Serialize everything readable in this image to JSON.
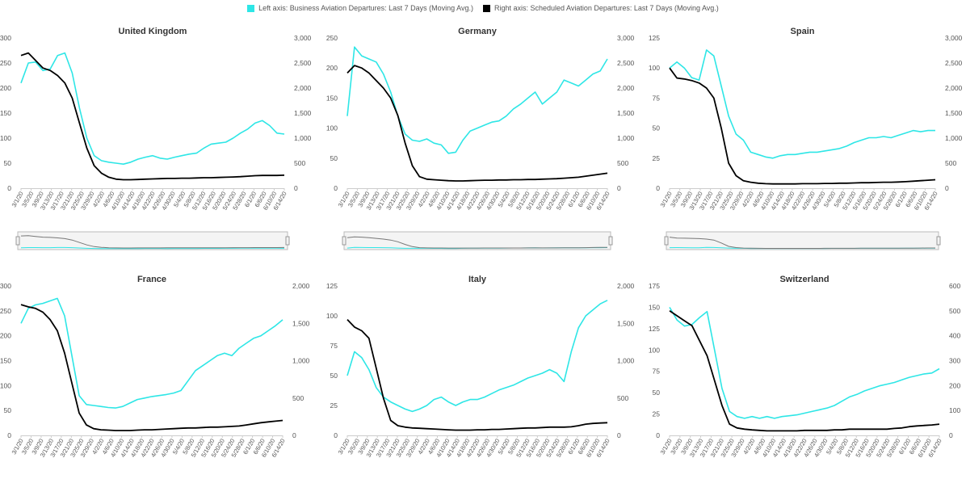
{
  "legend": {
    "left_label": "Left axis: Business Aviation Departures: Last 7 Days (Moving Avg.)",
    "right_label": "Right axis: Scheduled Aviation Departures: Last 7 Days (Moving Avg.)",
    "left_color": "#2ee6e6",
    "right_color": "#000000"
  },
  "chart_data": [
    {
      "type": "line",
      "title": "United Kingdom",
      "x_ticks": [
        "3/1/20",
        "3/5/20",
        "3/9/20",
        "3/13/20",
        "3/17/20",
        "3/21/20",
        "3/25/20",
        "3/29/20",
        "4/2/20",
        "4/6/20",
        "4/10/20",
        "4/14/20",
        "4/18/20",
        "4/22/20",
        "4/26/20",
        "4/30/20",
        "5/4/20",
        "5/8/20",
        "5/12/20",
        "5/16/20",
        "5/20/20",
        "5/24/20",
        "5/28/20",
        "6/1/20",
        "6/6/20",
        "6/10/20",
        "6/14/20"
      ],
      "left_axis": {
        "ylim": [
          0,
          300
        ],
        "ticks": [
          "0",
          "50",
          "100",
          "150",
          "200",
          "250",
          "300"
        ]
      },
      "right_axis": {
        "ylim": [
          0,
          3000
        ],
        "ticks": [
          "0",
          "500",
          "1,000",
          "1,500",
          "2,000",
          "2,500",
          "3,000"
        ]
      },
      "has_navigator": true,
      "series": [
        {
          "axis": "left",
          "color": "#2ee6e6",
          "values": [
            210,
            250,
            252,
            235,
            238,
            265,
            270,
            230,
            160,
            100,
            65,
            55,
            52,
            50,
            48,
            52,
            58,
            62,
            65,
            60,
            58,
            62,
            65,
            68,
            70,
            80,
            88,
            90,
            92,
            100,
            110,
            118,
            130,
            135,
            125,
            110,
            108
          ]
        },
        {
          "axis": "right",
          "color": "#000000",
          "values": [
            2650,
            2700,
            2550,
            2400,
            2350,
            2250,
            2100,
            1800,
            1300,
            800,
            450,
            300,
            220,
            180,
            170,
            170,
            175,
            180,
            185,
            190,
            195,
            195,
            200,
            200,
            205,
            210,
            210,
            215,
            220,
            225,
            230,
            240,
            250,
            255,
            255,
            255,
            260
          ]
        }
      ]
    },
    {
      "type": "line",
      "title": "Germany",
      "x_ticks": [
        "3/1/20",
        "3/5/20",
        "3/9/20",
        "3/13/20",
        "3/17/20",
        "3/21/20",
        "3/25/20",
        "3/29/20",
        "4/2/20",
        "4/6/20",
        "4/10/20",
        "4/14/20",
        "4/18/20",
        "4/22/20",
        "4/26/20",
        "4/30/20",
        "5/4/20",
        "5/8/20",
        "5/12/20",
        "5/16/20",
        "5/20/20",
        "5/24/20",
        "5/28/20",
        "6/1/20",
        "6/6/20",
        "6/10/20",
        "6/14/20"
      ],
      "left_axis": {
        "ylim": [
          0,
          250
        ],
        "ticks": [
          "0",
          "50",
          "100",
          "150",
          "200",
          "250"
        ]
      },
      "right_axis": {
        "ylim": [
          0,
          3000
        ],
        "ticks": [
          "0",
          "500",
          "1,000",
          "1,500",
          "2,000",
          "2,500",
          "3,000"
        ]
      },
      "has_navigator": true,
      "series": [
        {
          "axis": "left",
          "color": "#2ee6e6",
          "values": [
            120,
            235,
            220,
            215,
            210,
            190,
            160,
            120,
            90,
            80,
            78,
            82,
            75,
            72,
            58,
            60,
            80,
            95,
            100,
            105,
            110,
            112,
            120,
            132,
            140,
            150,
            160,
            140,
            150,
            160,
            180,
            175,
            170,
            180,
            190,
            195,
            215
          ]
        },
        {
          "axis": "right",
          "color": "#000000",
          "values": [
            2300,
            2450,
            2400,
            2300,
            2150,
            2000,
            1800,
            1450,
            900,
            450,
            230,
            180,
            170,
            160,
            150,
            145,
            145,
            150,
            155,
            160,
            160,
            165,
            165,
            170,
            170,
            175,
            175,
            180,
            185,
            190,
            200,
            210,
            220,
            240,
            260,
            280,
            300
          ]
        }
      ]
    },
    {
      "type": "line",
      "title": "Spain",
      "x_ticks": [
        "3/1/20",
        "3/5/20",
        "3/9/20",
        "3/13/20",
        "3/17/20",
        "3/21/20",
        "3/25/20",
        "3/29/20",
        "4/2/20",
        "4/6/20",
        "4/10/20",
        "4/14/20",
        "4/18/20",
        "4/22/20",
        "4/26/20",
        "4/30/20",
        "5/4/20",
        "5/8/20",
        "5/12/20",
        "5/16/20",
        "5/20/20",
        "5/24/20",
        "5/28/20",
        "6/1/20",
        "6/6/20",
        "6/10/20",
        "6/14/20"
      ],
      "left_axis": {
        "ylim": [
          0,
          125
        ],
        "ticks": [
          "0",
          "25",
          "50",
          "75",
          "100",
          "125"
        ]
      },
      "right_axis": {
        "ylim": [
          0,
          3000
        ],
        "ticks": [
          "0",
          "500",
          "1,000",
          "1,500",
          "2,000",
          "2,500",
          "3,000"
        ]
      },
      "has_navigator": true,
      "series": [
        {
          "axis": "left",
          "color": "#2ee6e6",
          "values": [
            100,
            105,
            100,
            92,
            90,
            115,
            110,
            85,
            60,
            45,
            40,
            30,
            28,
            26,
            25,
            27,
            28,
            28,
            29,
            30,
            30,
            31,
            32,
            33,
            35,
            38,
            40,
            42,
            42,
            43,
            42,
            44,
            46,
            48,
            47,
            48,
            48
          ]
        },
        {
          "axis": "right",
          "color": "#000000",
          "values": [
            2400,
            2200,
            2180,
            2150,
            2100,
            2000,
            1800,
            1200,
            500,
            250,
            150,
            120,
            100,
            90,
            85,
            85,
            85,
            85,
            90,
            90,
            90,
            95,
            95,
            100,
            100,
            105,
            110,
            110,
            115,
            120,
            120,
            125,
            130,
            140,
            150,
            160,
            170
          ]
        }
      ]
    },
    {
      "type": "line",
      "title": "France",
      "x_ticks": [
        "3/1/20",
        "3/5/20",
        "3/9/20",
        "3/13/20",
        "3/17/20",
        "3/21/20",
        "3/25/20",
        "3/29/20",
        "4/2/20",
        "4/6/20",
        "4/10/20",
        "4/14/20",
        "4/18/20",
        "4/22/20",
        "4/26/20",
        "4/30/20",
        "5/4/20",
        "5/8/20",
        "5/12/20",
        "5/16/20",
        "5/20/20",
        "5/24/20",
        "5/28/20",
        "6/1/20",
        "6/6/20",
        "6/10/20",
        "6/14/20"
      ],
      "left_axis": {
        "ylim": [
          0,
          300
        ],
        "ticks": [
          "0",
          "50",
          "100",
          "150",
          "200",
          "250",
          "300"
        ]
      },
      "right_axis": {
        "ylim": [
          0,
          2000
        ],
        "ticks": [
          "0",
          "500",
          "1,000",
          "1,500",
          "2,000"
        ]
      },
      "has_navigator": false,
      "series": [
        {
          "axis": "left",
          "color": "#2ee6e6",
          "values": [
            225,
            255,
            262,
            265,
            270,
            275,
            240,
            160,
            80,
            62,
            60,
            58,
            56,
            55,
            58,
            65,
            72,
            75,
            78,
            80,
            82,
            85,
            90,
            110,
            130,
            140,
            150,
            160,
            165,
            160,
            175,
            185,
            195,
            200,
            210,
            220,
            232
          ]
        },
        {
          "axis": "right",
          "color": "#000000",
          "values": [
            1750,
            1720,
            1700,
            1650,
            1550,
            1400,
            1100,
            700,
            300,
            140,
            90,
            75,
            70,
            65,
            65,
            65,
            70,
            75,
            75,
            80,
            85,
            90,
            95,
            100,
            100,
            105,
            110,
            110,
            115,
            120,
            125,
            140,
            155,
            170,
            180,
            190,
            200
          ]
        }
      ]
    },
    {
      "type": "line",
      "title": "Italy",
      "x_ticks": [
        "3/1/20",
        "3/5/20",
        "3/9/20",
        "3/13/20",
        "3/17/20",
        "3/21/20",
        "3/25/20",
        "3/29/20",
        "4/2/20",
        "4/6/20",
        "4/10/20",
        "4/14/20",
        "4/18/20",
        "4/22/20",
        "4/26/20",
        "4/30/20",
        "5/4/20",
        "5/8/20",
        "5/12/20",
        "5/16/20",
        "5/20/20",
        "5/24/20",
        "5/28/20",
        "6/1/20",
        "6/6/20",
        "6/10/20",
        "6/14/20"
      ],
      "left_axis": {
        "ylim": [
          0,
          125
        ],
        "ticks": [
          "0",
          "25",
          "50",
          "75",
          "100",
          "125"
        ]
      },
      "right_axis": {
        "ylim": [
          0,
          2000
        ],
        "ticks": [
          "0",
          "500",
          "1,000",
          "1,500",
          "2,000"
        ]
      },
      "has_navigator": false,
      "series": [
        {
          "axis": "left",
          "color": "#2ee6e6",
          "values": [
            50,
            70,
            65,
            55,
            40,
            32,
            28,
            25,
            22,
            20,
            22,
            25,
            30,
            32,
            28,
            25,
            28,
            30,
            30,
            32,
            35,
            38,
            40,
            42,
            45,
            48,
            50,
            52,
            55,
            52,
            45,
            70,
            90,
            100,
            105,
            110,
            113
          ]
        },
        {
          "axis": "right",
          "color": "#000000",
          "values": [
            1550,
            1450,
            1400,
            1300,
            900,
            500,
            200,
            130,
            110,
            100,
            95,
            90,
            85,
            80,
            75,
            70,
            70,
            70,
            75,
            75,
            80,
            80,
            85,
            90,
            95,
            100,
            100,
            105,
            110,
            110,
            110,
            115,
            130,
            150,
            160,
            165,
            170
          ]
        }
      ]
    },
    {
      "type": "line",
      "title": "Switzerland",
      "x_ticks": [
        "3/1/20",
        "3/5/20",
        "3/9/20",
        "3/13/20",
        "3/17/20",
        "3/21/20",
        "3/25/20",
        "3/29/20",
        "4/2/20",
        "4/6/20",
        "4/10/20",
        "4/14/20",
        "4/18/20",
        "4/22/20",
        "4/26/20",
        "4/30/20",
        "5/4/20",
        "5/8/20",
        "5/12/20",
        "5/16/20",
        "5/20/20",
        "5/24/20",
        "5/28/20",
        "6/1/20",
        "6/6/20",
        "6/10/20",
        "6/14/20"
      ],
      "left_axis": {
        "ylim": [
          0,
          175
        ],
        "ticks": [
          "0",
          "25",
          "50",
          "75",
          "100",
          "125",
          "150",
          "175"
        ]
      },
      "right_axis": {
        "ylim": [
          0,
          600
        ],
        "ticks": [
          "0",
          "100",
          "200",
          "300",
          "400",
          "500",
          "600"
        ]
      },
      "has_navigator": false,
      "series": [
        {
          "axis": "left",
          "color": "#2ee6e6",
          "values": [
            150,
            135,
            128,
            130,
            138,
            145,
            100,
            55,
            28,
            22,
            20,
            22,
            20,
            22,
            20,
            22,
            23,
            24,
            26,
            28,
            30,
            32,
            35,
            40,
            45,
            48,
            52,
            55,
            58,
            60,
            62,
            65,
            68,
            70,
            72,
            73,
            78
          ]
        },
        {
          "axis": "right",
          "color": "#000000",
          "values": [
            500,
            480,
            460,
            440,
            380,
            320,
            220,
            120,
            45,
            30,
            25,
            22,
            20,
            18,
            18,
            18,
            18,
            18,
            20,
            20,
            20,
            20,
            22,
            22,
            25,
            25,
            25,
            25,
            25,
            25,
            28,
            30,
            35,
            38,
            40,
            42,
            45
          ]
        }
      ]
    }
  ]
}
